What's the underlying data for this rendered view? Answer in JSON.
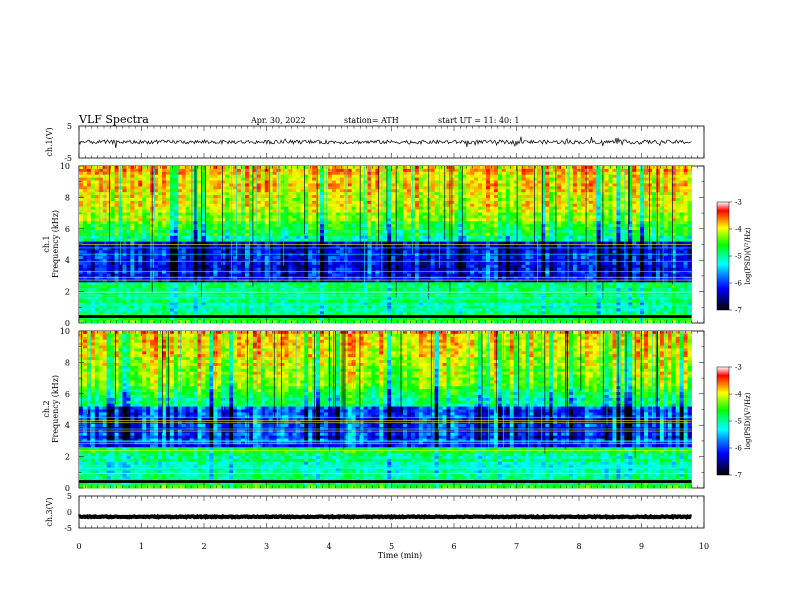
{
  "header": {
    "title": "VLF  Spectra",
    "date": "Apr. 30, 2022",
    "station": "station= ATH",
    "start": "start  UT  =    11: 40: 1"
  },
  "chart_data": [
    {
      "type": "line",
      "panel": "ch1-waveform",
      "ylabel": "ch.1(V)",
      "ylim": [
        -5,
        5
      ],
      "ytick_labels": [
        "5",
        "-5"
      ],
      "xlim": [
        0,
        10
      ],
      "series": [
        {
          "mean": 0.0,
          "spread": 0.6,
          "color": "#000000"
        }
      ]
    },
    {
      "type": "heatmap",
      "panel": "ch1-spectrogram",
      "ylabel_channel": "ch.1",
      "ylabel": "Frequency (kHz)",
      "ylim": [
        0,
        10
      ],
      "ytick_labels": [
        "0",
        "2",
        "4",
        "6",
        "8",
        "10"
      ],
      "xlim": [
        0,
        9.8
      ],
      "colorbar": {
        "label": "log(PSD)(V²/Hz)",
        "range": [
          -7,
          -3
        ],
        "tick_labels": [
          "-3",
          "-4",
          "-5",
          "-6",
          "-7"
        ]
      }
    },
    {
      "type": "heatmap",
      "panel": "ch2-spectrogram",
      "ylabel_channel": "ch.2",
      "ylabel": "Frequency (kHz)",
      "ylim": [
        0,
        10
      ],
      "ytick_labels": [
        "0",
        "2",
        "4",
        "6",
        "8",
        "10"
      ],
      "xlim": [
        0,
        9.8
      ],
      "colorbar": {
        "label": "log(PSD)(V²/Hz)",
        "range": [
          -7,
          -3
        ],
        "tick_labels": [
          "-3",
          "-4",
          "-5",
          "-6",
          "-7"
        ]
      }
    },
    {
      "type": "line",
      "panel": "ch3-waveform",
      "ylabel": "ch.3(V)",
      "ylim": [
        -5,
        5
      ],
      "ytick_labels": [
        "5",
        "0",
        "-5"
      ],
      "xlim": [
        0,
        10
      ],
      "series": [
        {
          "mean": -1.5,
          "spread": 0.15,
          "color": "#000000"
        }
      ]
    }
  ],
  "xaxis": {
    "label": "Time  (min)",
    "range": [
      0,
      10
    ],
    "tick_labels": [
      "0",
      "1",
      "2",
      "3",
      "4",
      "5",
      "6",
      "7",
      "8",
      "9",
      "10"
    ]
  },
  "colormap": [
    "#000000",
    "#000080",
    "#0000ff",
    "#0080ff",
    "#00ffff",
    "#00ff80",
    "#00ff00",
    "#80ff00",
    "#ffff00",
    "#ff8000",
    "#ff0000",
    "#ffffff"
  ]
}
